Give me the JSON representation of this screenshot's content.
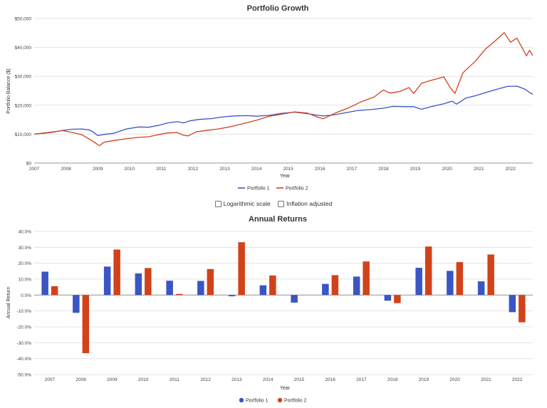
{
  "growth_chart": {
    "type": "line",
    "title": "Portfolio Growth",
    "xlabel": "Year",
    "ylabel": "Portfolio Balance ($)",
    "ylim": [
      0,
      50000
    ],
    "yticks": [
      "$0",
      "$10,000",
      "$20,000",
      "$30,000",
      "$40,000",
      "$50,000"
    ],
    "xticks": [
      "2007",
      "2008",
      "2009",
      "2010",
      "2011",
      "2012",
      "2013",
      "2014",
      "2015",
      "2016",
      "2017",
      "2018",
      "2019",
      "2020",
      "2021",
      "2022"
    ],
    "legend_position": "bottom-center",
    "series": [
      {
        "name": "Portfolio 1",
        "color": "#3a55c4",
        "x": [
          2007.0,
          2007.3,
          2007.6,
          2007.9,
          2008.2,
          2008.5,
          2008.75,
          2008.85,
          2009.0,
          2009.2,
          2009.5,
          2009.9,
          2010.3,
          2010.6,
          2010.9,
          2011.2,
          2011.5,
          2011.7,
          2011.9,
          2012.2,
          2012.6,
          2012.9,
          2013.3,
          2013.7,
          2014.0,
          2014.4,
          2014.8,
          2015.2,
          2015.6,
          2015.9,
          2016.1,
          2016.4,
          2016.8,
          2017.2,
          2017.6,
          2018.0,
          2018.3,
          2018.7,
          2018.95,
          2019.2,
          2019.5,
          2019.9,
          2020.15,
          2020.3,
          2020.6,
          2020.9,
          2021.2,
          2021.5,
          2021.9,
          2022.2,
          2022.45,
          2022.6,
          2022.7
        ],
        "values": [
          10000,
          10300,
          10700,
          11300,
          11700,
          11800,
          11400,
          10800,
          9500,
          9900,
          10300,
          11800,
          12500,
          12400,
          13000,
          13900,
          14300,
          13900,
          14600,
          15100,
          15400,
          15900,
          16300,
          16400,
          16200,
          16500,
          17200,
          17600,
          17100,
          16600,
          16300,
          16600,
          17400,
          18200,
          18500,
          19000,
          19600,
          19500,
          19500,
          18600,
          19500,
          20500,
          21400,
          20400,
          22500,
          23300,
          24300,
          25300,
          26500,
          26600,
          25600,
          24400,
          23800
        ]
      },
      {
        "name": "Portfolio 2",
        "color": "#d2421a",
        "x": [
          2007.0,
          2007.3,
          2007.6,
          2007.9,
          2008.2,
          2008.5,
          2008.75,
          2008.9,
          2009.05,
          2009.2,
          2009.5,
          2009.9,
          2010.3,
          2010.6,
          2010.9,
          2011.2,
          2011.5,
          2011.7,
          2011.85,
          2012.1,
          2012.5,
          2012.8,
          2013.2,
          2013.6,
          2014.0,
          2014.4,
          2014.8,
          2015.2,
          2015.6,
          2015.95,
          2016.1,
          2016.5,
          2016.9,
          2017.3,
          2017.7,
          2018.0,
          2018.2,
          2018.5,
          2018.8,
          2018.95,
          2019.2,
          2019.5,
          2019.9,
          2020.1,
          2020.25,
          2020.5,
          2020.9,
          2021.2,
          2021.5,
          2021.8,
          2022.0,
          2022.2,
          2022.35,
          2022.5,
          2022.6,
          2022.7
        ],
        "values": [
          10000,
          10400,
          10800,
          11200,
          10600,
          9800,
          8200,
          7200,
          6000,
          7200,
          7800,
          8400,
          8900,
          9100,
          9800,
          10400,
          10600,
          9600,
          9400,
          10800,
          11400,
          11800,
          12600,
          13700,
          14800,
          16200,
          16900,
          17700,
          17300,
          15800,
          15300,
          17400,
          19100,
          21200,
          22800,
          25300,
          24200,
          24700,
          26100,
          24100,
          27600,
          28600,
          29800,
          26100,
          24100,
          31200,
          35300,
          39300,
          42100,
          45100,
          41800,
          43200,
          40200,
          37100,
          39000,
          37200
        ]
      }
    ]
  },
  "options": {
    "log_scale_label": "Logarithmic scale",
    "inflation_label": "Inflation adjusted"
  },
  "chart_data": [
    {
      "type": "bar",
      "title": "Annual Returns",
      "xlabel": "Year",
      "ylabel": "Annual Return",
      "ylim": [
        -50,
        40
      ],
      "yticks": [
        "-50.0%",
        "-40.0%",
        "-30.0%",
        "-20.0%",
        "-10.0%",
        "0.0%",
        "10.0%",
        "20.0%",
        "30.0%",
        "40.0%"
      ],
      "categories": [
        "2007",
        "2008",
        "2009",
        "2010",
        "2011",
        "2012",
        "2013",
        "2014",
        "2015",
        "2016",
        "2017",
        "2018",
        "2019",
        "2020",
        "2021",
        "2022"
      ],
      "legend_position": "bottom-center",
      "series": [
        {
          "name": "Portfolio 1",
          "color": "#3a55c4",
          "values": [
            14.7,
            -11.2,
            17.9,
            13.6,
            9.0,
            8.9,
            -0.8,
            6.1,
            -4.8,
            7.0,
            11.6,
            -3.6,
            17.1,
            15.2,
            8.6,
            -10.8
          ]
        },
        {
          "name": "Portfolio 2",
          "color": "#d2421a",
          "values": [
            5.5,
            -36.6,
            28.6,
            17.0,
            0.7,
            16.3,
            33.2,
            12.3,
            0.0,
            12.5,
            21.1,
            -5.1,
            30.5,
            20.7,
            25.5,
            -17.2
          ]
        }
      ]
    }
  ]
}
